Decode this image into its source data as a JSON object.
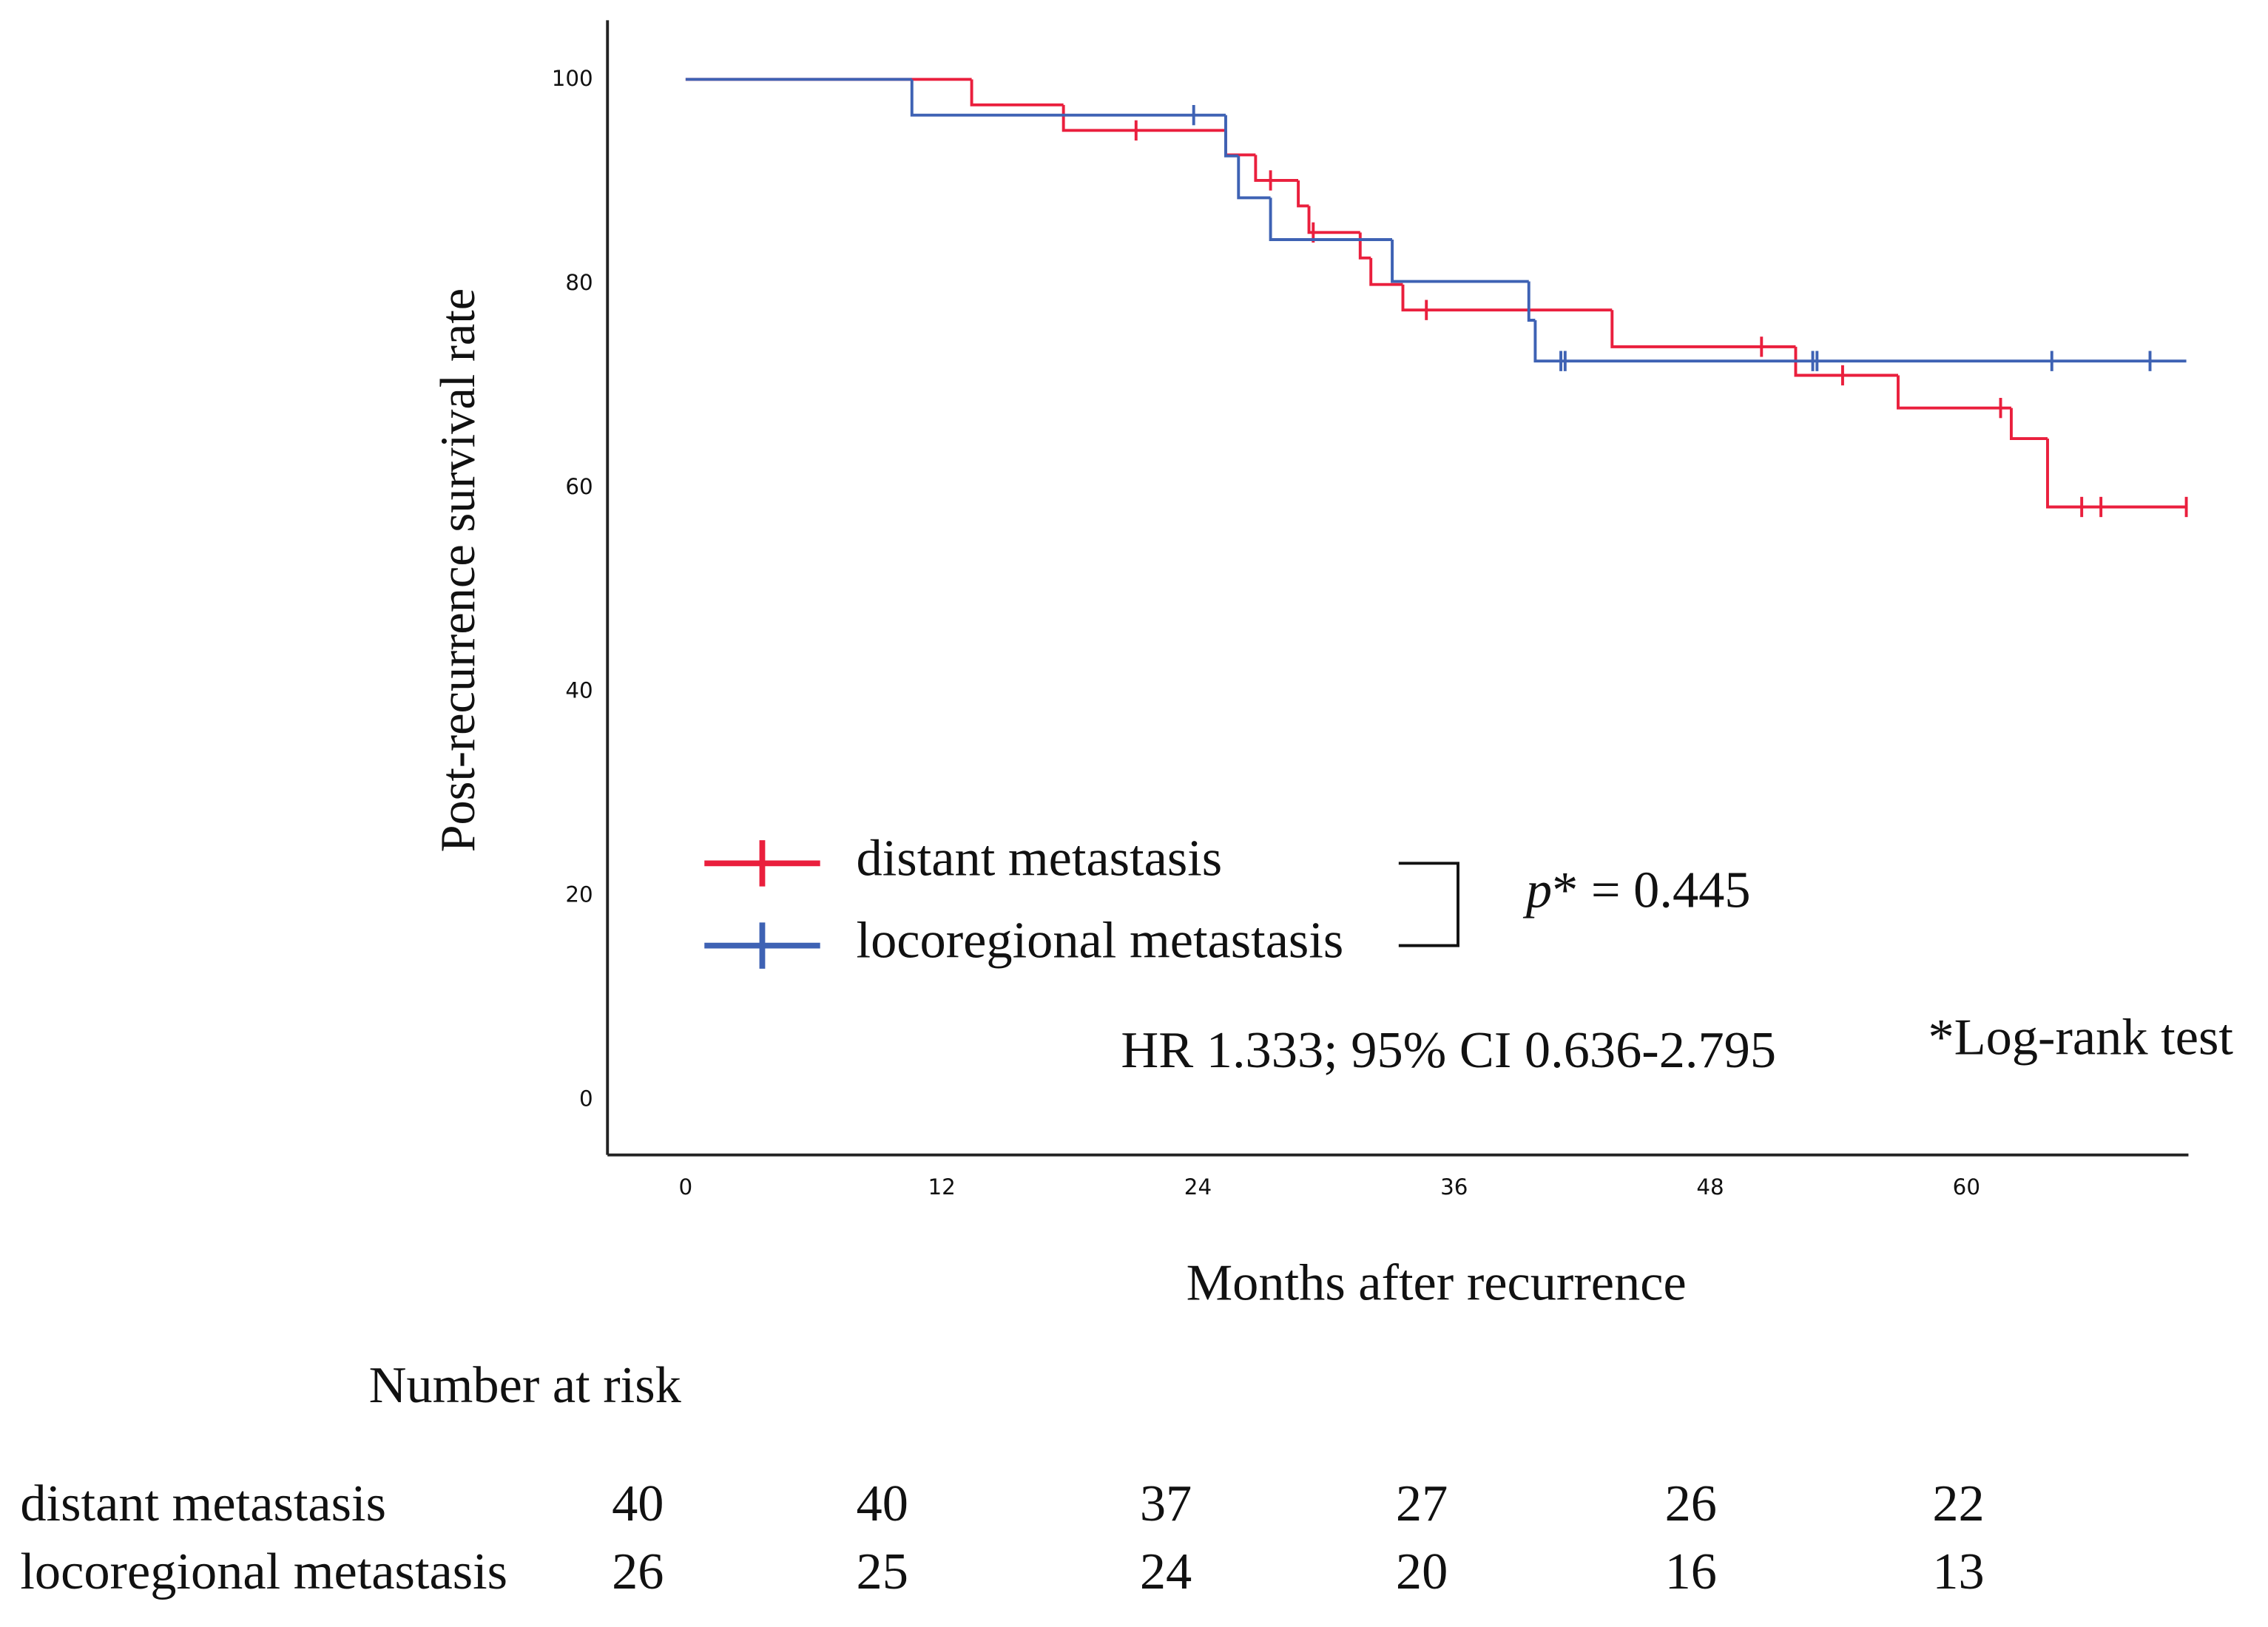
{
  "chart_data": {
    "type": "km",
    "xlabel": "Months after recurrence",
    "ylabel": "Post-recurrence survival rate",
    "xlim": [
      -3.66,
      70.4
    ],
    "ylim": [
      -5.4,
      105.8
    ],
    "xticks": [
      0,
      12,
      24,
      36,
      48,
      60
    ],
    "yticks": [
      0,
      20,
      40,
      60,
      80,
      100
    ],
    "series": [
      {
        "name": "distant metastasis",
        "color": "#ea1f3d",
        "x": [
          0,
          13.4,
          17.7,
          25.3,
          26.7,
          28.7,
          29.2,
          31.6,
          32.1,
          33.6,
          43.4,
          52.0,
          56.8,
          62.1,
          63.8
        ],
        "values": [
          100,
          97.5,
          95.0,
          92.6,
          90.1,
          87.6,
          85.0,
          82.5,
          79.9,
          77.4,
          73.8,
          71.0,
          67.8,
          64.8,
          58.1
        ],
        "censor_x": [
          21.1,
          27.4,
          29.4,
          34.7,
          50.4,
          54.2,
          61.6,
          65.4,
          66.3,
          70.3
        ],
        "censor_values": [
          95.0,
          90.1,
          85.0,
          77.4,
          73.8,
          71.0,
          67.8,
          58.1,
          58.1,
          58.1
        ]
      },
      {
        "name": "locoregional metastasis",
        "color": "#3e62b4",
        "x": [
          0,
          10.6,
          25.3,
          25.9,
          27.4,
          33.1,
          39.5,
          39.8
        ],
        "values": [
          100,
          96.5,
          92.5,
          88.4,
          84.3,
          80.2,
          76.4,
          72.4
        ],
        "censor_x": [
          23.8,
          41.0,
          41.2,
          52.8,
          53.0,
          64.0,
          68.6
        ],
        "censor_values": [
          96.5,
          72.4,
          72.4,
          72.4,
          72.4,
          72.4,
          72.4
        ]
      }
    ],
    "pvalue_symbol": "p",
    "pvalue_text": "* = 0.445",
    "hr_text": "HR 1.333; 95% CI 0.636-2.795",
    "test_note": "*Log-rank test",
    "risk_table": {
      "title": "Number at risk",
      "rows": [
        {
          "name": "distant metastasis",
          "counts": [
            40,
            40,
            37,
            27,
            26,
            22
          ]
        },
        {
          "name": "locoregional metastasis",
          "counts": [
            26,
            25,
            24,
            20,
            16,
            13
          ]
        }
      ]
    }
  }
}
